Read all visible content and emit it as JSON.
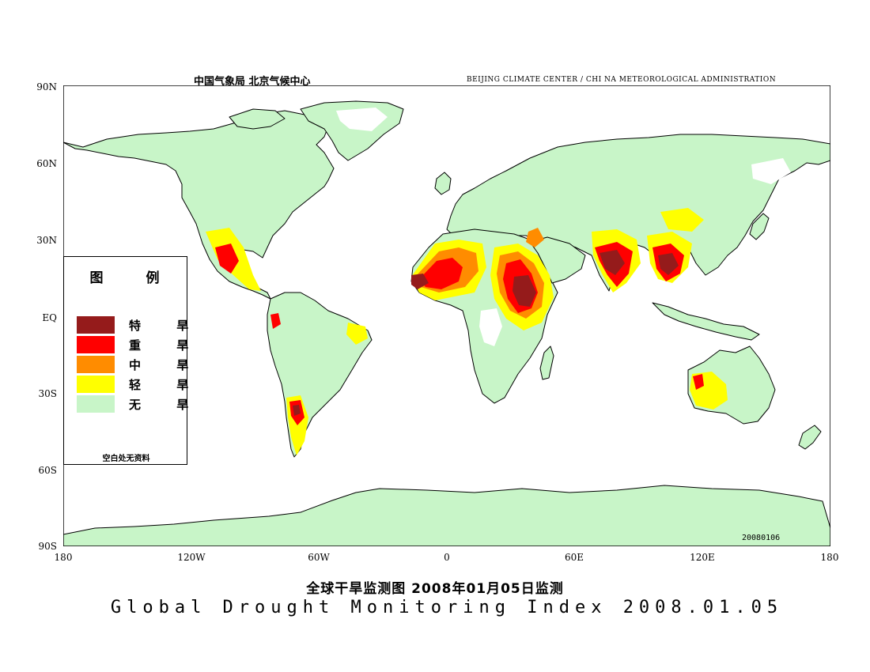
{
  "header": {
    "left": "中国气象局   北京气候中心",
    "right": "BEIJING CLIMATE CENTER / CHI NA METEOROLOGICAL ADMINISTRATION"
  },
  "date_stamp": "20080106",
  "axes": {
    "lat_labels": [
      "90N",
      "60N",
      "30N",
      "EQ",
      "30S",
      "60S",
      "90S"
    ],
    "lon_labels": [
      "180",
      "120W",
      "60W",
      "0",
      "60E",
      "120E",
      "180"
    ]
  },
  "legend": {
    "title": "图 例",
    "items": [
      {
        "label": "特 旱",
        "color": "#951b1b"
      },
      {
        "label": "重 旱",
        "color": "#ff0000"
      },
      {
        "label": "中 旱",
        "color": "#ff8c00"
      },
      {
        "label": "轻 旱",
        "color": "#ffff00"
      },
      {
        "label": "无 旱",
        "color": "#c8f5c8"
      }
    ],
    "note": "空白处无资料"
  },
  "map_colors": {
    "land": "#c8f5c8",
    "coast": "#000000",
    "ocean": "#ffffff"
  },
  "title_cn": "全球干旱监测图    2008年01月05日监测",
  "title_en": "Global Drought Monitoring Index  2008.01.05"
}
